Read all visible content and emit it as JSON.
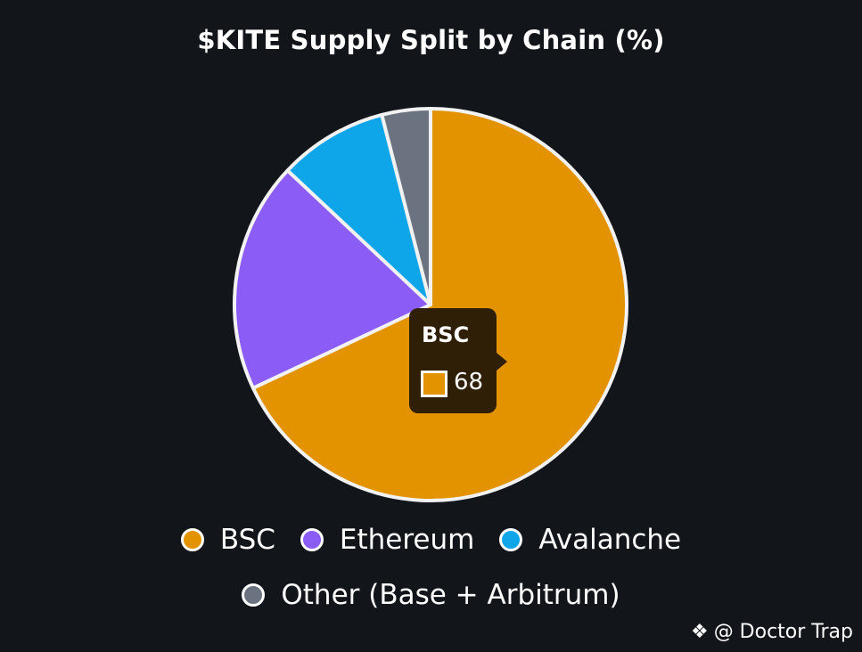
{
  "chart_data": {
    "type": "pie",
    "title": "$KITE Supply Split by Chain (%)",
    "categories": [
      "BSC",
      "Ethereum",
      "Avalanche",
      "Other (Base + Arbitrum)"
    ],
    "values": [
      68,
      19,
      9,
      4
    ],
    "colors": [
      "#e39300",
      "#8b5cf6",
      "#0ea5e9",
      "#6b7280"
    ],
    "legend_position": "bottom",
    "tooltip": {
      "label": "BSC",
      "value": "68"
    }
  },
  "watermark": {
    "text": "@ Doctor Trap",
    "logo_icon": "binance-logo-icon"
  }
}
